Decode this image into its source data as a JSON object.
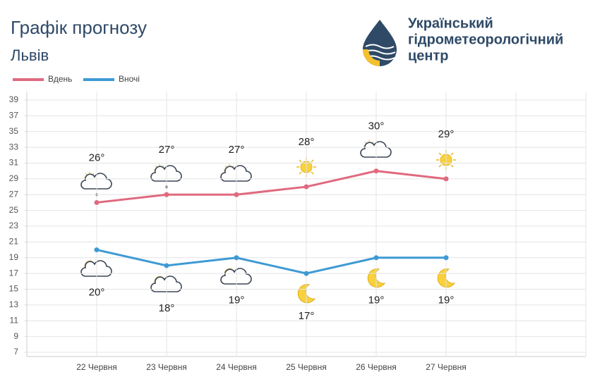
{
  "header": {
    "title": "Графік прогнозу",
    "subtitle": "Львів",
    "org": [
      "Український",
      "гідрометеорологічний",
      "центр"
    ]
  },
  "chart_data": {
    "type": "line",
    "categories": [
      null,
      "22 Червня",
      "23 Червня",
      "24 Червня",
      "25 Червня",
      "26 Червня",
      "27 Червня",
      null,
      null
    ],
    "series": [
      {
        "name": "Вдень",
        "color": "#e0697f",
        "values": [
          null,
          26,
          27,
          27,
          28,
          30,
          29,
          null,
          null
        ],
        "value_labels": [
          null,
          "26°",
          "27°",
          "27°",
          "28°",
          "30°",
          "29°",
          null,
          null
        ]
      },
      {
        "name": "Вночі",
        "color": "#3d9ad3",
        "values": [
          null,
          20,
          18,
          19,
          17,
          19,
          19,
          null,
          null
        ],
        "value_labels": [
          null,
          "20°",
          "18°",
          "19°",
          "17°",
          "19°",
          "19°",
          null,
          null
        ]
      }
    ],
    "ylim": [
      7,
      39
    ],
    "yticks": [
      7,
      9,
      11,
      13,
      15,
      17,
      19,
      21,
      23,
      25,
      27,
      29,
      31,
      33,
      35,
      37,
      39
    ],
    "grid": true,
    "legend": "top-left"
  }
}
